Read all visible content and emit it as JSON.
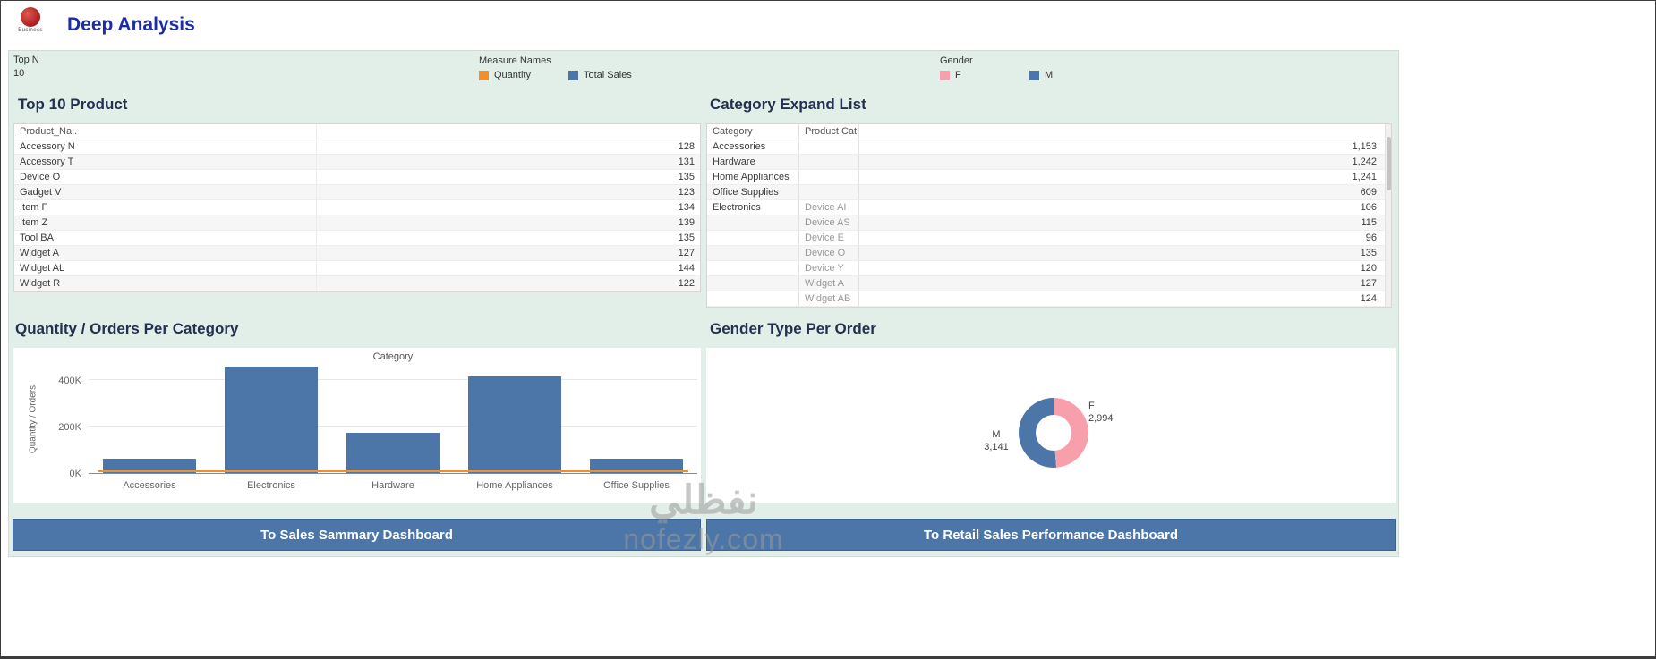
{
  "header": {
    "title": "Deep Analysis",
    "logo_text": "Business"
  },
  "colors": {
    "accent_blue": "#4d76a8",
    "accent_orange": "#f28e2b",
    "accent_pink": "#f7a0ac",
    "background_green": "#e2efe8"
  },
  "filters": {
    "top_n_label": "Top N",
    "top_n_value": "10",
    "measure_legend": {
      "label": "Measure Names",
      "items": [
        {
          "label": "Quantity",
          "color": "#f28e2b"
        },
        {
          "label": "Total Sales",
          "color": "#4d76a8"
        }
      ]
    },
    "gender_legend": {
      "label": "Gender",
      "items": [
        {
          "label": "F",
          "color": "#f7a0ac"
        },
        {
          "label": "M",
          "color": "#4d76a8"
        }
      ]
    }
  },
  "top10_panel": {
    "title": "Top 10 Product",
    "column_header": "Product_Na..",
    "rows": [
      {
        "name": "Accessory N",
        "value": "128"
      },
      {
        "name": "Accessory T",
        "value": "131"
      },
      {
        "name": "Device O",
        "value": "135"
      },
      {
        "name": "Gadget V",
        "value": "123"
      },
      {
        "name": "Item F",
        "value": "134"
      },
      {
        "name": "Item Z",
        "value": "139"
      },
      {
        "name": "Tool BA",
        "value": "135"
      },
      {
        "name": "Widget A",
        "value": "127"
      },
      {
        "name": "Widget AL",
        "value": "144"
      },
      {
        "name": "Widget R",
        "value": "122"
      }
    ]
  },
  "category_panel": {
    "title": "Category Expand List",
    "column_headers": [
      "Category",
      "Product Cat.."
    ],
    "rows": [
      {
        "category": "Accessories",
        "product": "",
        "value": "1,153"
      },
      {
        "category": "Hardware",
        "product": "",
        "value": "1,242"
      },
      {
        "category": "Home Appliances",
        "product": "",
        "value": "1,241"
      },
      {
        "category": "Office Supplies",
        "product": "",
        "value": "609"
      },
      {
        "category": "Electronics",
        "product": "Device AI",
        "value": "106"
      },
      {
        "category": "",
        "product": "Device AS",
        "value": "115"
      },
      {
        "category": "",
        "product": "Device E",
        "value": "96"
      },
      {
        "category": "",
        "product": "Device O",
        "value": "135"
      },
      {
        "category": "",
        "product": "Device Y",
        "value": "120"
      },
      {
        "category": "",
        "product": "Widget A",
        "value": "127"
      },
      {
        "category": "",
        "product": "Widget AB",
        "value": "124"
      }
    ]
  },
  "chart_data": [
    {
      "type": "bar",
      "title": "Quantity / Orders Per Category",
      "xlabel": "Category",
      "ylabel": "Quantity / Orders",
      "categories": [
        "Accessories",
        "Electronics",
        "Hardware",
        "Home Appliances",
        "Office Supplies"
      ],
      "series": [
        {
          "name": "Total Sales",
          "color": "#4d76a8",
          "values": [
            62000,
            458000,
            173000,
            415000,
            62000
          ]
        },
        {
          "name": "Quantity",
          "color": "#f28e2b",
          "values": [
            1500,
            11000,
            4200,
            10500,
            1700
          ]
        }
      ],
      "ylim": [
        0,
        480000
      ],
      "yticks": [
        {
          "label": "0K",
          "value": 0
        },
        {
          "label": "200K",
          "value": 200000
        },
        {
          "label": "400K",
          "value": 400000
        }
      ],
      "grid": true,
      "legend_position": "top-filter-strip"
    },
    {
      "type": "pie",
      "title": "Gender Type Per Order",
      "donut": true,
      "slices": [
        {
          "label": "F",
          "value": 2994,
          "display": "2,994",
          "color": "#f7a0ac"
        },
        {
          "label": "M",
          "value": 3141,
          "display": "3,141",
          "color": "#4d76a8"
        }
      ]
    }
  ],
  "buttons": {
    "sales_summary": "To Sales Sammary Dashboard",
    "retail_performance": "To Retail Sales Performance Dashboard"
  },
  "watermark": {
    "line1": "نفظلي",
    "line2": "nofezly.com"
  }
}
